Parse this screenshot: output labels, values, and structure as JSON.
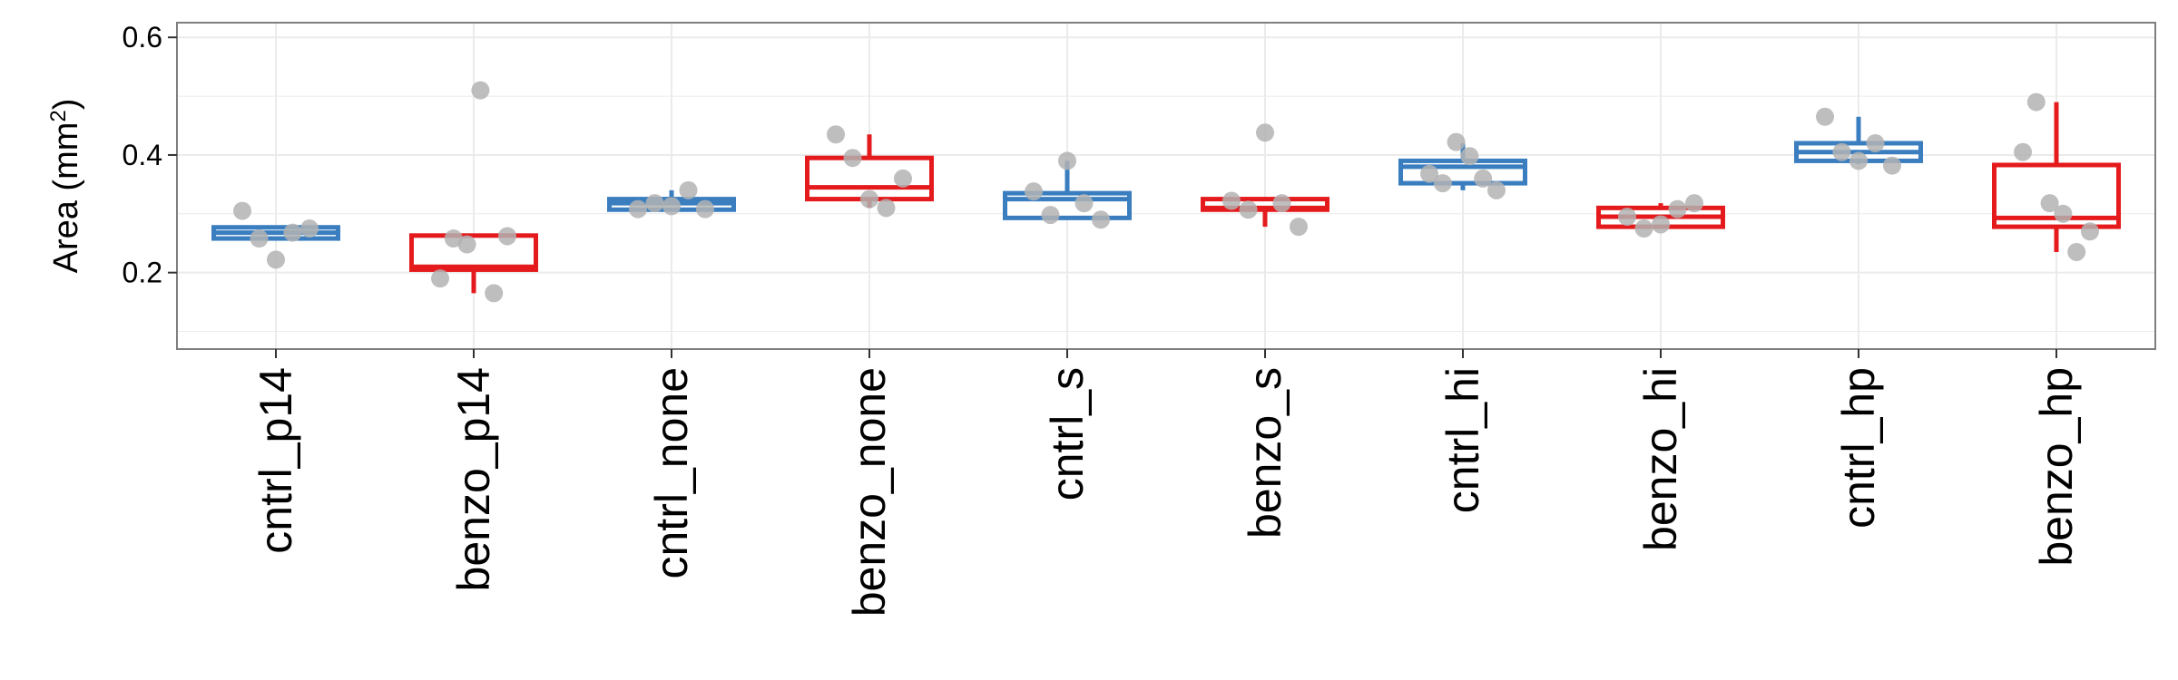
{
  "chart_data": {
    "type": "boxplot",
    "title": "",
    "xlabel": "",
    "ylabel": "Area (mm",
    "ylabel_sup": "2",
    "ylabel_close": ")",
    "ylim": [
      0.07,
      0.625
    ],
    "yticks": [
      0.2,
      0.4,
      0.6
    ],
    "ytick_labels": [
      "0.2",
      "0.4",
      "0.6"
    ],
    "grid": true,
    "colors": {
      "cntrl": "#3a7ebf",
      "benzo": "#e41a1c",
      "points": "#b3b3b3",
      "grid": "#ebebeb",
      "panel_border": "#7f7f7f"
    },
    "categories": [
      "cntrl_p14",
      "benzo_p14",
      "cntrl_none",
      "benzo_none",
      "cntrl_s",
      "benzo_s",
      "cntrl_hi",
      "benzo_hi",
      "cntrl_hp",
      "benzo_hp"
    ],
    "boxes": [
      {
        "category": "cntrl_p14",
        "group": "cntrl",
        "min": 0.255,
        "q1": 0.258,
        "median": 0.268,
        "q3": 0.277,
        "max": 0.278,
        "points": [
          0.305,
          0.258,
          0.222,
          0.268,
          0.275
        ]
      },
      {
        "category": "benzo_p14",
        "group": "benzo",
        "min": 0.165,
        "q1": 0.205,
        "median": 0.21,
        "q3": 0.263,
        "max": 0.263,
        "points": [
          0.19,
          0.258,
          0.248,
          0.51,
          0.165,
          0.262
        ]
      },
      {
        "category": "cntrl_none",
        "group": "cntrl",
        "min": 0.305,
        "q1": 0.307,
        "median": 0.318,
        "q3": 0.325,
        "max": 0.34,
        "points": [
          0.308,
          0.318,
          0.313,
          0.34,
          0.308
        ]
      },
      {
        "category": "benzo_none",
        "group": "benzo",
        "min": 0.31,
        "q1": 0.325,
        "median": 0.345,
        "q3": 0.395,
        "max": 0.435,
        "points": [
          0.435,
          0.395,
          0.325,
          0.31,
          0.36
        ]
      },
      {
        "category": "cntrl_s",
        "group": "cntrl",
        "min": 0.29,
        "q1": 0.293,
        "median": 0.325,
        "q3": 0.335,
        "max": 0.39,
        "points": [
          0.338,
          0.298,
          0.39,
          0.318,
          0.29
        ]
      },
      {
        "category": "benzo_s",
        "group": "benzo",
        "min": 0.278,
        "q1": 0.307,
        "median": 0.31,
        "q3": 0.325,
        "max": 0.325,
        "points": [
          0.322,
          0.307,
          0.438,
          0.318,
          0.278
        ]
      },
      {
        "category": "cntrl_hi",
        "group": "cntrl",
        "min": 0.34,
        "q1": 0.352,
        "median": 0.38,
        "q3": 0.39,
        "max": 0.42,
        "points": [
          0.368,
          0.352,
          0.422,
          0.398,
          0.36,
          0.34
        ]
      },
      {
        "category": "benzo_hi",
        "group": "benzo",
        "min": 0.275,
        "q1": 0.278,
        "median": 0.295,
        "q3": 0.31,
        "max": 0.318,
        "points": [
          0.295,
          0.275,
          0.282,
          0.308,
          0.318
        ]
      },
      {
        "category": "cntrl_hp",
        "group": "cntrl",
        "min": 0.385,
        "q1": 0.39,
        "median": 0.405,
        "q3": 0.42,
        "max": 0.465,
        "points": [
          0.465,
          0.405,
          0.39,
          0.42,
          0.382
        ]
      },
      {
        "category": "benzo_hp",
        "group": "benzo",
        "min": 0.235,
        "q1": 0.278,
        "median": 0.293,
        "q3": 0.383,
        "max": 0.49,
        "points": [
          0.405,
          0.49,
          0.318,
          0.3,
          0.235,
          0.27
        ]
      }
    ]
  }
}
